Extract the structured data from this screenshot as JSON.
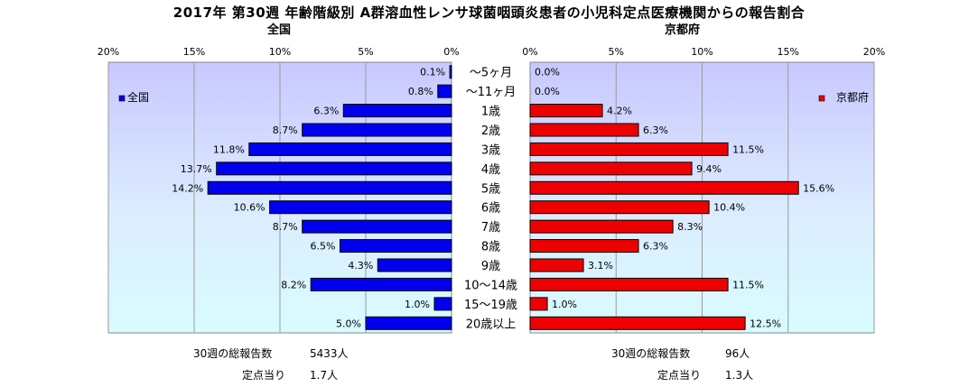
{
  "chart_data": {
    "type": "bar",
    "title": "2017年 第30週 年齢階級別 A群溶血性レンサ球菌咽頭炎患者の小児科定点医療機関からの報告割合",
    "categories": [
      "〜5ヶ月",
      "〜11ヶ月",
      "1歳",
      "2歳",
      "3歳",
      "4歳",
      "5歳",
      "6歳",
      "7歳",
      "8歳",
      "9歳",
      "10〜14歳",
      "15〜19歳",
      "20歳以上"
    ],
    "xlim": [
      0,
      20
    ],
    "x_ticks": [
      "0%",
      "5%",
      "10%",
      "15%",
      "20%"
    ],
    "grid": true,
    "panels": [
      {
        "subtitle": "全国",
        "legend": "全国",
        "legend_position": "top-left",
        "direction": "reversed",
        "color": "#0000ee",
        "values": [
          0.1,
          0.8,
          6.3,
          8.7,
          11.8,
          13.7,
          14.2,
          10.6,
          8.7,
          6.5,
          4.3,
          8.2,
          1.0,
          5.0
        ],
        "labels": [
          "0.1%",
          "0.8%",
          "6.3%",
          "8.7%",
          "11.8%",
          "13.7%",
          "14.2%",
          "10.6%",
          "8.7%",
          "6.5%",
          "4.3%",
          "8.2%",
          "1.0%",
          "5.0%"
        ]
      },
      {
        "subtitle": "京都府",
        "legend": "京都府",
        "legend_position": "top-right",
        "direction": "normal",
        "color": "#ee0000",
        "values": [
          0.0,
          0.0,
          4.2,
          6.3,
          11.5,
          9.4,
          15.6,
          10.4,
          8.3,
          6.3,
          3.1,
          11.5,
          1.0,
          12.5
        ],
        "labels": [
          "0.0%",
          "0.0%",
          "4.2%",
          "6.3%",
          "11.5%",
          "9.4%",
          "15.6%",
          "10.4%",
          "8.3%",
          "6.3%",
          "3.1%",
          "11.5%",
          "1.0%",
          "12.5%"
        ]
      }
    ]
  },
  "footer": {
    "national": {
      "total_label": "30週の総報告数",
      "total_value": "5433人",
      "per_site_label": "定点当り",
      "per_site_value": "1.7人"
    },
    "kyoto": {
      "total_label": "30週の総報告数",
      "total_value": "96人",
      "per_site_label": "定点当り",
      "per_site_value": "1.3人"
    }
  }
}
